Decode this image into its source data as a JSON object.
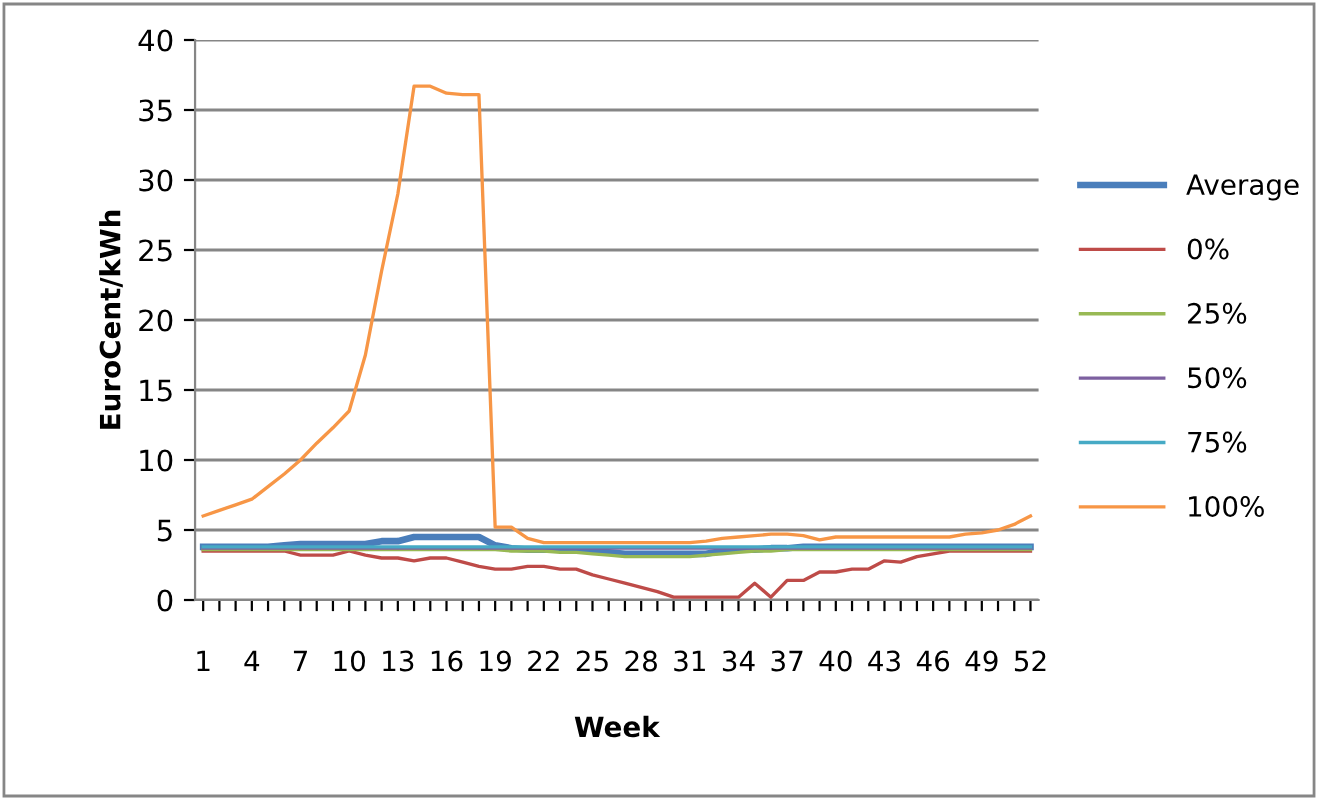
{
  "chart_data": {
    "type": "line",
    "xlabel": "Week",
    "ylabel": "EuroCent/kWh",
    "categories": [
      "1",
      null,
      null,
      "4",
      null,
      null,
      "7",
      null,
      null,
      "10",
      null,
      null,
      "13",
      null,
      null,
      "16",
      null,
      null,
      "19",
      null,
      null,
      "22",
      null,
      null,
      "25",
      null,
      null,
      "28",
      null,
      null,
      "31",
      null,
      null,
      "34",
      null,
      null,
      "37",
      null,
      null,
      "40",
      null,
      null,
      "43",
      null,
      null,
      "46",
      null,
      null,
      "49",
      null,
      null,
      "52"
    ],
    "ylim": [
      0,
      40
    ],
    "yticks": [
      0,
      5,
      10,
      15,
      20,
      25,
      30,
      35,
      40
    ],
    "grid": "y",
    "legend": "right",
    "marker": "none",
    "line_style": "solid",
    "series": [
      {
        "name": "Average",
        "color": "#4a7ebb",
        "values": [
          3.8,
          3.8,
          3.8,
          3.8,
          3.8,
          3.9,
          4.0,
          4.0,
          4.0,
          4.0,
          4.0,
          4.2,
          4.2,
          4.5,
          4.5,
          4.5,
          4.5,
          4.5,
          3.9,
          3.7,
          3.6,
          3.6,
          3.6,
          3.6,
          3.5,
          3.4,
          3.3,
          3.3,
          3.3,
          3.3,
          3.3,
          3.3,
          3.5,
          3.6,
          3.6,
          3.7,
          3.7,
          3.8,
          3.8,
          3.8,
          3.8,
          3.8,
          3.8,
          3.8,
          3.8,
          3.8,
          3.8,
          3.8,
          3.8,
          3.8,
          3.8,
          3.8
        ]
      },
      {
        "name": "0%",
        "color": "#be4b48",
        "values": [
          3.5,
          3.5,
          3.5,
          3.5,
          3.5,
          3.5,
          3.2,
          3.2,
          3.2,
          3.5,
          3.2,
          3.0,
          3.0,
          2.8,
          3.0,
          3.0,
          2.7,
          2.4,
          2.2,
          2.2,
          2.4,
          2.4,
          2.2,
          2.2,
          1.8,
          1.5,
          1.2,
          0.9,
          0.6,
          0.2,
          0.2,
          0.2,
          0.2,
          0.2,
          1.2,
          0.2,
          1.4,
          1.4,
          2.0,
          2.0,
          2.2,
          2.2,
          2.8,
          2.7,
          3.1,
          3.3,
          3.5,
          3.5,
          3.5,
          3.5,
          3.5,
          3.5
        ]
      },
      {
        "name": "25%",
        "color": "#98b954",
        "values": [
          3.6,
          3.6,
          3.6,
          3.6,
          3.6,
          3.6,
          3.6,
          3.6,
          3.6,
          3.6,
          3.6,
          3.6,
          3.6,
          3.6,
          3.6,
          3.6,
          3.6,
          3.6,
          3.6,
          3.5,
          3.5,
          3.5,
          3.4,
          3.4,
          3.3,
          3.2,
          3.1,
          3.1,
          3.1,
          3.1,
          3.1,
          3.2,
          3.3,
          3.4,
          3.5,
          3.5,
          3.6,
          3.6,
          3.6,
          3.6,
          3.6,
          3.6,
          3.6,
          3.6,
          3.6,
          3.6,
          3.6,
          3.6,
          3.6,
          3.6,
          3.6,
          3.6
        ]
      },
      {
        "name": "50%",
        "color": "#7d60a0",
        "values": [
          3.7,
          3.7,
          3.7,
          3.7,
          3.7,
          3.7,
          3.7,
          3.7,
          3.7,
          3.7,
          3.7,
          3.7,
          3.7,
          3.7,
          3.7,
          3.7,
          3.7,
          3.7,
          3.7,
          3.7,
          3.7,
          3.7,
          3.7,
          3.7,
          3.7,
          3.7,
          3.7,
          3.7,
          3.7,
          3.7,
          3.7,
          3.7,
          3.7,
          3.7,
          3.7,
          3.7,
          3.7,
          3.7,
          3.7,
          3.7,
          3.7,
          3.7,
          3.7,
          3.7,
          3.7,
          3.7,
          3.7,
          3.7,
          3.7,
          3.7,
          3.7,
          3.7
        ]
      },
      {
        "name": "75%",
        "color": "#46aac5",
        "values": [
          3.8,
          3.8,
          3.8,
          3.8,
          3.8,
          3.8,
          3.8,
          3.8,
          3.8,
          3.8,
          3.8,
          3.8,
          3.8,
          3.8,
          3.8,
          3.8,
          3.8,
          3.8,
          3.8,
          3.8,
          3.8,
          3.8,
          3.8,
          3.8,
          3.8,
          3.8,
          3.8,
          3.8,
          3.8,
          3.8,
          3.8,
          3.8,
          3.8,
          3.8,
          3.8,
          3.8,
          3.8,
          3.8,
          3.8,
          3.8,
          3.8,
          3.8,
          3.8,
          3.8,
          3.8,
          3.8,
          3.8,
          3.8,
          3.8,
          3.8,
          3.8,
          3.8
        ]
      },
      {
        "name": "100%",
        "color": "#f79646",
        "values": [
          6.0,
          6.4,
          6.8,
          7.2,
          8.1,
          9.0,
          10.0,
          11.2,
          12.3,
          13.5,
          17.5,
          23.5,
          29.0,
          36.7,
          36.7,
          36.2,
          36.1,
          36.1,
          5.2,
          5.2,
          4.4,
          4.1,
          4.1,
          4.1,
          4.1,
          4.1,
          4.1,
          4.1,
          4.1,
          4.1,
          4.1,
          4.2,
          4.4,
          4.5,
          4.6,
          4.7,
          4.7,
          4.6,
          4.3,
          4.5,
          4.5,
          4.5,
          4.5,
          4.5,
          4.5,
          4.5,
          4.5,
          4.7,
          4.8,
          5.0,
          5.4,
          6.0
        ]
      }
    ]
  }
}
